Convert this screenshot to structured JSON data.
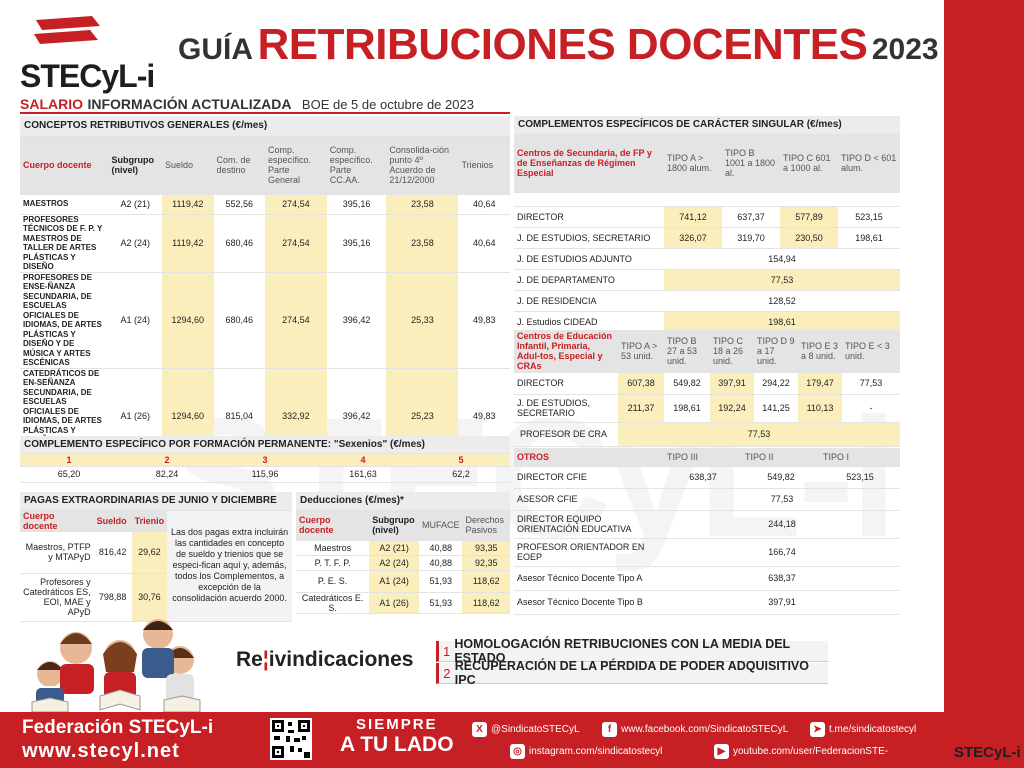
{
  "header": {
    "logo": "STECyL-i",
    "title_prefix": "GUÍA",
    "title_main": "RETRIBUCIONES DOCENTES",
    "title_year": "2023",
    "subhead_a": "SALARIO",
    "subhead_b": "INFORMACIÓN ACTUALIZADA",
    "subhead_c": "BOE de 5 de octubre de 2023"
  },
  "generales": {
    "title": "CONCEPTOS RETRIBUTIVOS GENERALES (€/mes)",
    "headers": [
      "Cuerpo docente",
      "Subgrupo (nivel)",
      "Sueldo",
      "Com. de destino",
      "Comp. específico. Parte General",
      "Comp. específico. Parte CC.AA.",
      "Consolida-ción punto 4º Acuerdo de 21/12/2000",
      "Trienios"
    ],
    "rows": [
      {
        "cuerpo": "MAESTROS",
        "sub": "A2 (21)",
        "sueldo": "1119,42",
        "destino": "552,56",
        "general": "274,54",
        "ccaa": "395,16",
        "consol": "23,58",
        "trienios": "40,64"
      },
      {
        "cuerpo": "PROFESORES TÉCNICOS DE F. P. Y MAESTROS DE TALLER DE ARTES PLÁSTICAS Y DISEÑO",
        "sub": "A2 (24)",
        "sueldo": "1119,42",
        "destino": "680,46",
        "general": "274,54",
        "ccaa": "395,16",
        "consol": "23,58",
        "trienios": "40,64"
      },
      {
        "cuerpo": "PROFESORES DE ENSE-ÑANZA SECUNDARIA, DE ESCUELAS OFICIALES DE IDIOMAS, DE ARTES PLÁSTICAS Y DISEÑO Y DE MÚSICA Y ARTES ESCÉNICAS",
        "sub": "A1 (24)",
        "sueldo": "1294,60",
        "destino": "680,46",
        "general": "274,54",
        "ccaa": "396,42",
        "consol": "25,33",
        "trienios": "49,83"
      },
      {
        "cuerpo": "CATEDRÁTICOS DE EN-SEÑANZA SECUNDARIA, DE ESCUELAS OFICIALES DE IDIOMAS, DE ARTES PLÁSTICAS Y DISEÑO Y DE MÚSICA Y ARTES ESCÉNICAS",
        "sub": "A1 (26)",
        "sueldo": "1294,60",
        "destino": "815,04",
        "general": "332,92",
        "ccaa": "396,42",
        "consol": "25,23",
        "trienios": "49,83"
      }
    ]
  },
  "sexenios": {
    "title": "COMPLEMENTO ESPECÍFICO POR FORMACIÓN PERMANENTE: \"Sexenios\" (€/mes)",
    "labels": [
      "1",
      "2",
      "3",
      "4",
      "5"
    ],
    "values": [
      "65,20",
      "82,24",
      "115,96",
      "161,63",
      "62,2"
    ]
  },
  "pagas": {
    "title": "PAGAS EXTRAORDINARIAS DE JUNIO Y DICIEMBRE",
    "headers": [
      "Cuerpo docente",
      "Sueldo",
      "Trienio"
    ],
    "rows": [
      {
        "cuerpo": "Maestros, PTFP y MTAPyD",
        "sueldo": "816,42",
        "trienio": "29,62"
      },
      {
        "cuerpo": "Profesores y Catedráticos ES, EOI, MAE y APyD",
        "sueldo": "798,88",
        "trienio": "30,76"
      }
    ],
    "note": "Las dos pagas extra incluirán las cantidades en concepto de sueldo y trienios que se especi-fican aquí y, además, todos los Complementos, a excepción de la consolidación acuerdo 2000."
  },
  "deducciones": {
    "title": "Deducciones (€/mes)*",
    "headers": [
      "Cuerpo docente",
      "Subgrupo (nivel)",
      "MUFACE",
      "Derechos Pasivos"
    ],
    "rows": [
      {
        "cuerpo": "Maestros",
        "sub": "A2 (21)",
        "muface": "40,88",
        "pasivos": "93,35"
      },
      {
        "cuerpo": "P. T. F. P.",
        "sub": "A2 (24)",
        "muface": "40,88",
        "pasivos": "92,35"
      },
      {
        "cuerpo": "P. E. S.",
        "sub": "A1 (24)",
        "muface": "51,93",
        "pasivos": "118,62"
      },
      {
        "cuerpo": "Catedráticos E. S.",
        "sub": "A1 (26)",
        "muface": "51,93",
        "pasivos": "118,62"
      }
    ]
  },
  "singular": {
    "title": "COMPLEMENTOS ESPECÍFICOS DE CARÁCTER SINGULAR (€/mes)",
    "headers": [
      "Centros de Secundaria, de FP y de Enseñanzas de Régimen Especial",
      "TIPO A > 1800 alum.",
      "TIPO B 1001 a 1800 al.",
      "TIPO C 601 a 1000 al.",
      "TIPO D < 601 alum."
    ],
    "rows": [
      {
        "label": "DIRECTOR",
        "a": "741,12",
        "b": "637,37",
        "c": "577,89",
        "d": "523,15"
      },
      {
        "label": "J. DE ESTUDIOS, SECRETARIO",
        "a": "326,07",
        "b": "319,70",
        "c": "230,50",
        "d": "198,61"
      }
    ],
    "merged": [
      {
        "label": "J. DE ESTUDIOS ADJUNTO",
        "value": "154,94"
      },
      {
        "label": "J. DE DEPARTAMENTO",
        "value": "77,53"
      },
      {
        "label": "J. DE RESIDENCIA",
        "value": "128,52"
      },
      {
        "label": "J. Estudios CIDEAD",
        "value": "198,61"
      }
    ]
  },
  "infantil": {
    "headers": [
      "Centros de Educación Infantil, Primaria, Adul-tos, Especial y CRAs",
      "TIPO A > 53 unid.",
      "TIPO B 27 a 53 unid.",
      "TIPO C 18 a 26 unid.",
      "TIPO D 9 a 17 unid.",
      "TIPO E 3 a 8 unid.",
      "TIPO E < 3 unid."
    ],
    "rows": [
      {
        "label": "DIRECTOR",
        "v": [
          "607,38",
          "549,82",
          "397,91",
          "294,22",
          "179,47",
          "77,53"
        ]
      },
      {
        "label": "J. DE ESTUDIOS, SECRETARIO",
        "v": [
          "211,37",
          "198,61",
          "192,24",
          "141,25",
          "110,13",
          "-"
        ]
      }
    ],
    "cra_label": "PROFESOR DE CRA",
    "cra_value": "77,53"
  },
  "otros": {
    "headers": [
      "OTROS",
      "TIPO III",
      "TIPO II",
      "TIPO I"
    ],
    "cfie": {
      "label": "DIRECTOR CFIE",
      "v": [
        "638,37",
        "549,82",
        "523,15"
      ]
    },
    "merged": [
      {
        "label": "ASESOR CFIE",
        "value": "77,53"
      },
      {
        "label": "DIRECTOR EQUIPO ORIENTACIÓN EDUCATIVA",
        "value": "244,18"
      },
      {
        "label": "PROFESOR ORIENTADOR EN EOEP",
        "value": "166,74"
      },
      {
        "label": "Asesor Técnico Docente Tipo A",
        "value": "638,37"
      },
      {
        "label": "Asesor Técnico Docente Tipo B",
        "value": "397,91"
      }
    ]
  },
  "watermark": "STECyL-i",
  "reivindicaciones": {
    "title_prefix": "Re",
    "title_rest": "ivindicaciones",
    "items": [
      {
        "n": "1",
        "text": "HOMOLOGACIÓN RETRIBUCIONES CON LA MEDIA DEL ESTADO"
      },
      {
        "n": "2",
        "text": "RECUPERACIÓN DE LA PÉRDIDA DE PODER ADQUISITIVO IPC"
      }
    ]
  },
  "footer": {
    "fed": "Federación STECyL-i",
    "web": "www.stecyl.net",
    "slogan1": "SIEMPRE",
    "slogan2": "A TU LADO",
    "twitter": "@SindicatoSTECyL",
    "facebook": "www.facebook.com/SindicatoSTECyL",
    "telegram": "t.me/sindicatostecyl",
    "instagram": "instagram.com/sindicatostecyl",
    "youtube": "youtube.com/user/FederacionSTE-",
    "logo": "STECyL-i"
  },
  "colors": {
    "brand_red": "#c62025",
    "highlight": "#fbeebd"
  }
}
